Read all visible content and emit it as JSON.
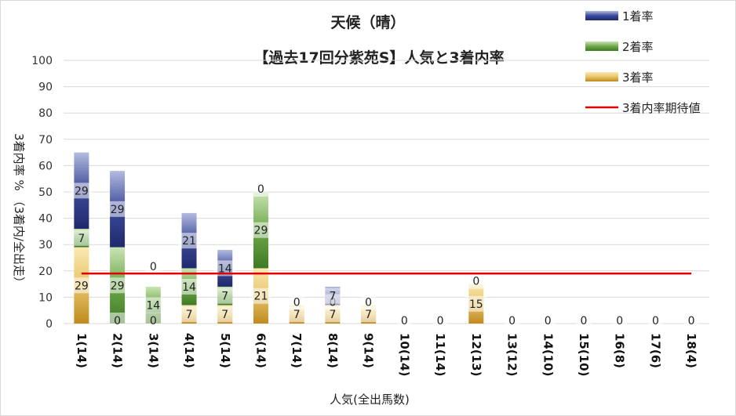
{
  "chart_data": {
    "type": "bar",
    "stacked": true,
    "title": "天候（晴）",
    "subtitle": "【過去17回分紫苑S】人気と3着内率",
    "xlabel": "人気(全出馬数)",
    "ylabel": "3着内率 % （3着内/全出走）",
    "ylim": [
      0,
      100
    ],
    "yticks": [
      "0",
      "10",
      "20",
      "30",
      "40",
      "50",
      "60",
      "70",
      "80",
      "90",
      "100"
    ],
    "grid": true,
    "legend_position": "top-right",
    "categories": [
      "1(14)",
      "2(14)",
      "3(14)",
      "4(14)",
      "5(14)",
      "6(14)",
      "7(14)",
      "8(14)",
      "9(14)",
      "10(14)",
      "11(14)",
      "12(13)",
      "13(12)",
      "14(10)",
      "15(10)",
      "16(8)",
      "17(6)",
      "18(4)"
    ],
    "series": [
      {
        "name": "3着率",
        "color": "#d4a63a",
        "values": [
          29,
          0,
          0,
          7,
          7,
          21,
          7,
          7,
          7,
          0,
          0,
          15,
          0,
          0,
          0,
          0,
          0,
          0
        ],
        "labels": [
          "29",
          "0",
          "0",
          "7",
          "7",
          "21",
          "7",
          "7",
          "7",
          "0",
          "0",
          "15",
          "0",
          "0",
          "0",
          "0",
          "0",
          "0"
        ]
      },
      {
        "name": "2着率",
        "color": "#5f9a40",
        "values": [
          7,
          29,
          14,
          14,
          7,
          29,
          0,
          0,
          0,
          0,
          0,
          0,
          0,
          0,
          0,
          0,
          0,
          0
        ],
        "labels": [
          "7",
          "29",
          "14",
          "14",
          "7",
          "29",
          "0",
          "0",
          "0",
          "",
          "",
          "",
          "",
          "",
          "",
          "",
          "",
          ""
        ]
      },
      {
        "name": "1着率",
        "color": "#3b4a9a",
        "values": [
          29,
          29,
          0,
          21,
          14,
          0,
          0,
          7,
          0,
          0,
          0,
          0,
          0,
          0,
          0,
          0,
          0,
          0
        ],
        "labels": [
          "29",
          "29",
          "0",
          "21",
          "14",
          "0",
          "",
          "7",
          "",
          "",
          "",
          "0",
          "",
          "",
          "",
          "",
          "",
          ""
        ]
      }
    ],
    "reference_line": {
      "name": "3着内率期待値",
      "value": 19,
      "color": "#e00000"
    }
  }
}
